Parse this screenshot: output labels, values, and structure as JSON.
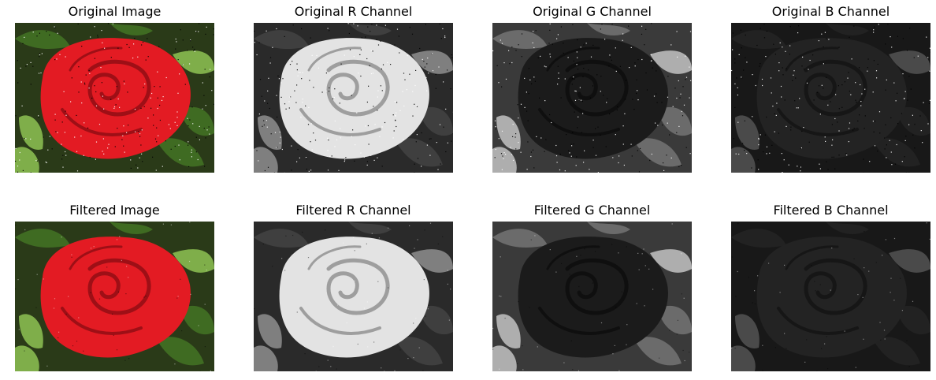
{
  "figure": {
    "panels": [
      {
        "title": "Original Image",
        "mode": "color",
        "filtered": false
      },
      {
        "title": "Original R Channel",
        "mode": "r",
        "filtered": false
      },
      {
        "title": "Original G Channel",
        "mode": "g",
        "filtered": false
      },
      {
        "title": "Original B Channel",
        "mode": "b",
        "filtered": false
      },
      {
        "title": "Filtered Image",
        "mode": "color",
        "filtered": true
      },
      {
        "title": "Filtered R Channel",
        "mode": "r",
        "filtered": true
      },
      {
        "title": "Filtered G Channel",
        "mode": "g",
        "filtered": true
      },
      {
        "title": "Filtered B Channel",
        "mode": "b",
        "filtered": true
      }
    ]
  },
  "colors": {
    "rose": "#e31b23",
    "rose_dark": "#9e0f16",
    "leaf": "#3f6b22",
    "leaf_light": "#7fae4a",
    "background_dark": "#2a3a18",
    "title_text": "#000000"
  }
}
